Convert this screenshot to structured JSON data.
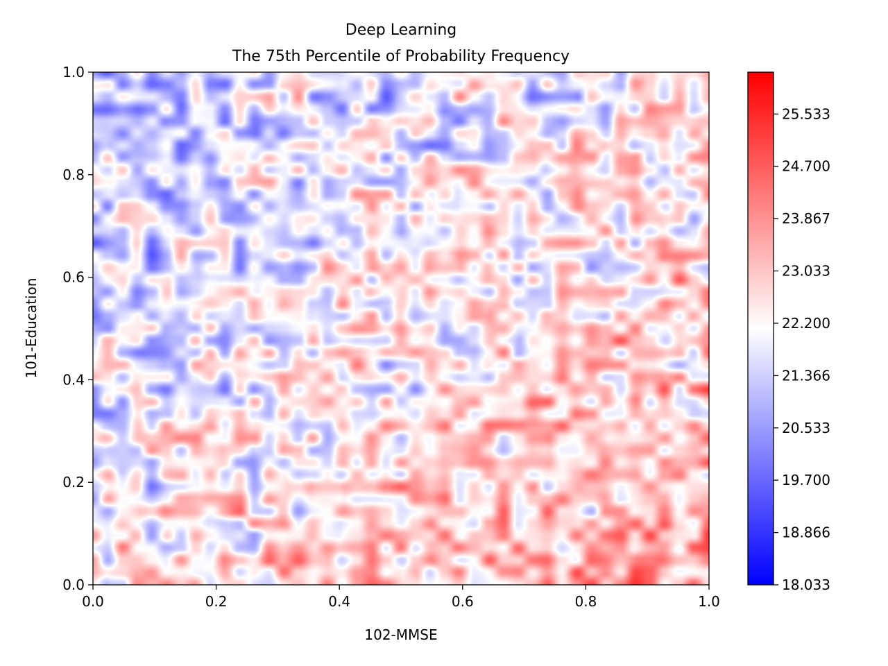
{
  "chart_data": {
    "type": "heatmap",
    "title": "Deep Learning",
    "subtitle": "The 75th Percentile of Probability Frequency",
    "xlabel": "102-MMSE",
    "ylabel": "101-Education",
    "xlim": [
      0.0,
      1.0
    ],
    "ylim": [
      0.0,
      1.0
    ],
    "x_ticks": [
      "0.0",
      "0.2",
      "0.4",
      "0.6",
      "0.8",
      "1.0"
    ],
    "y_ticks": [
      "0.0",
      "0.2",
      "0.4",
      "0.6",
      "0.8",
      "1.0"
    ],
    "colormap": "bwr",
    "colorbar": {
      "min": 18.033,
      "max": 26.2,
      "ticks": [
        "18.033",
        "18.866",
        "19.700",
        "20.533",
        "21.366",
        "22.200",
        "23.033",
        "23.867",
        "24.700",
        "25.533"
      ],
      "colors": [
        "#0000ff",
        "#ffffff",
        "#ff0000"
      ]
    },
    "trend": "low values (blue) concentrated toward upper-left (low 102-MMSE, high 101-Education); high values (red) toward lower-right",
    "grid": false,
    "legend": "none"
  }
}
